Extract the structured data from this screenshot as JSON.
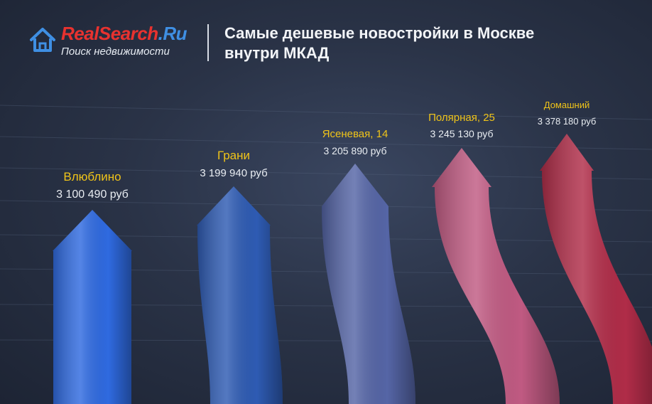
{
  "brand": {
    "name_part1": "RealSearch",
    "name_part2": ".Ru",
    "tagline": "Поиск недвижимости",
    "color_red": "#e8322f",
    "color_blue": "#3f8fe3"
  },
  "title": {
    "line1": "Самые дешевые новостройки в Москве",
    "line2": "внутри МКАД"
  },
  "chart_data": {
    "type": "bar",
    "title": "Самые дешевые новостройки в Москве внутри МКАД",
    "categories": [
      "Влюблино",
      "Грани",
      "Ясеневая, 14",
      "Полярная, 25",
      "Домашний"
    ],
    "value_labels": [
      "3 100 490 руб",
      "3 199 940 руб",
      "3 205 890 руб",
      "3 245 130 руб",
      "3 378 180 руб"
    ],
    "values": [
      3100490,
      3199940,
      3205890,
      3245130,
      3378180
    ],
    "colors": [
      "#2f6ae0",
      "#2e5bb3",
      "#5565a6",
      "#c05a82",
      "#b02c48"
    ],
    "label_color": "#f0c419",
    "grid": true,
    "legend": "none"
  }
}
